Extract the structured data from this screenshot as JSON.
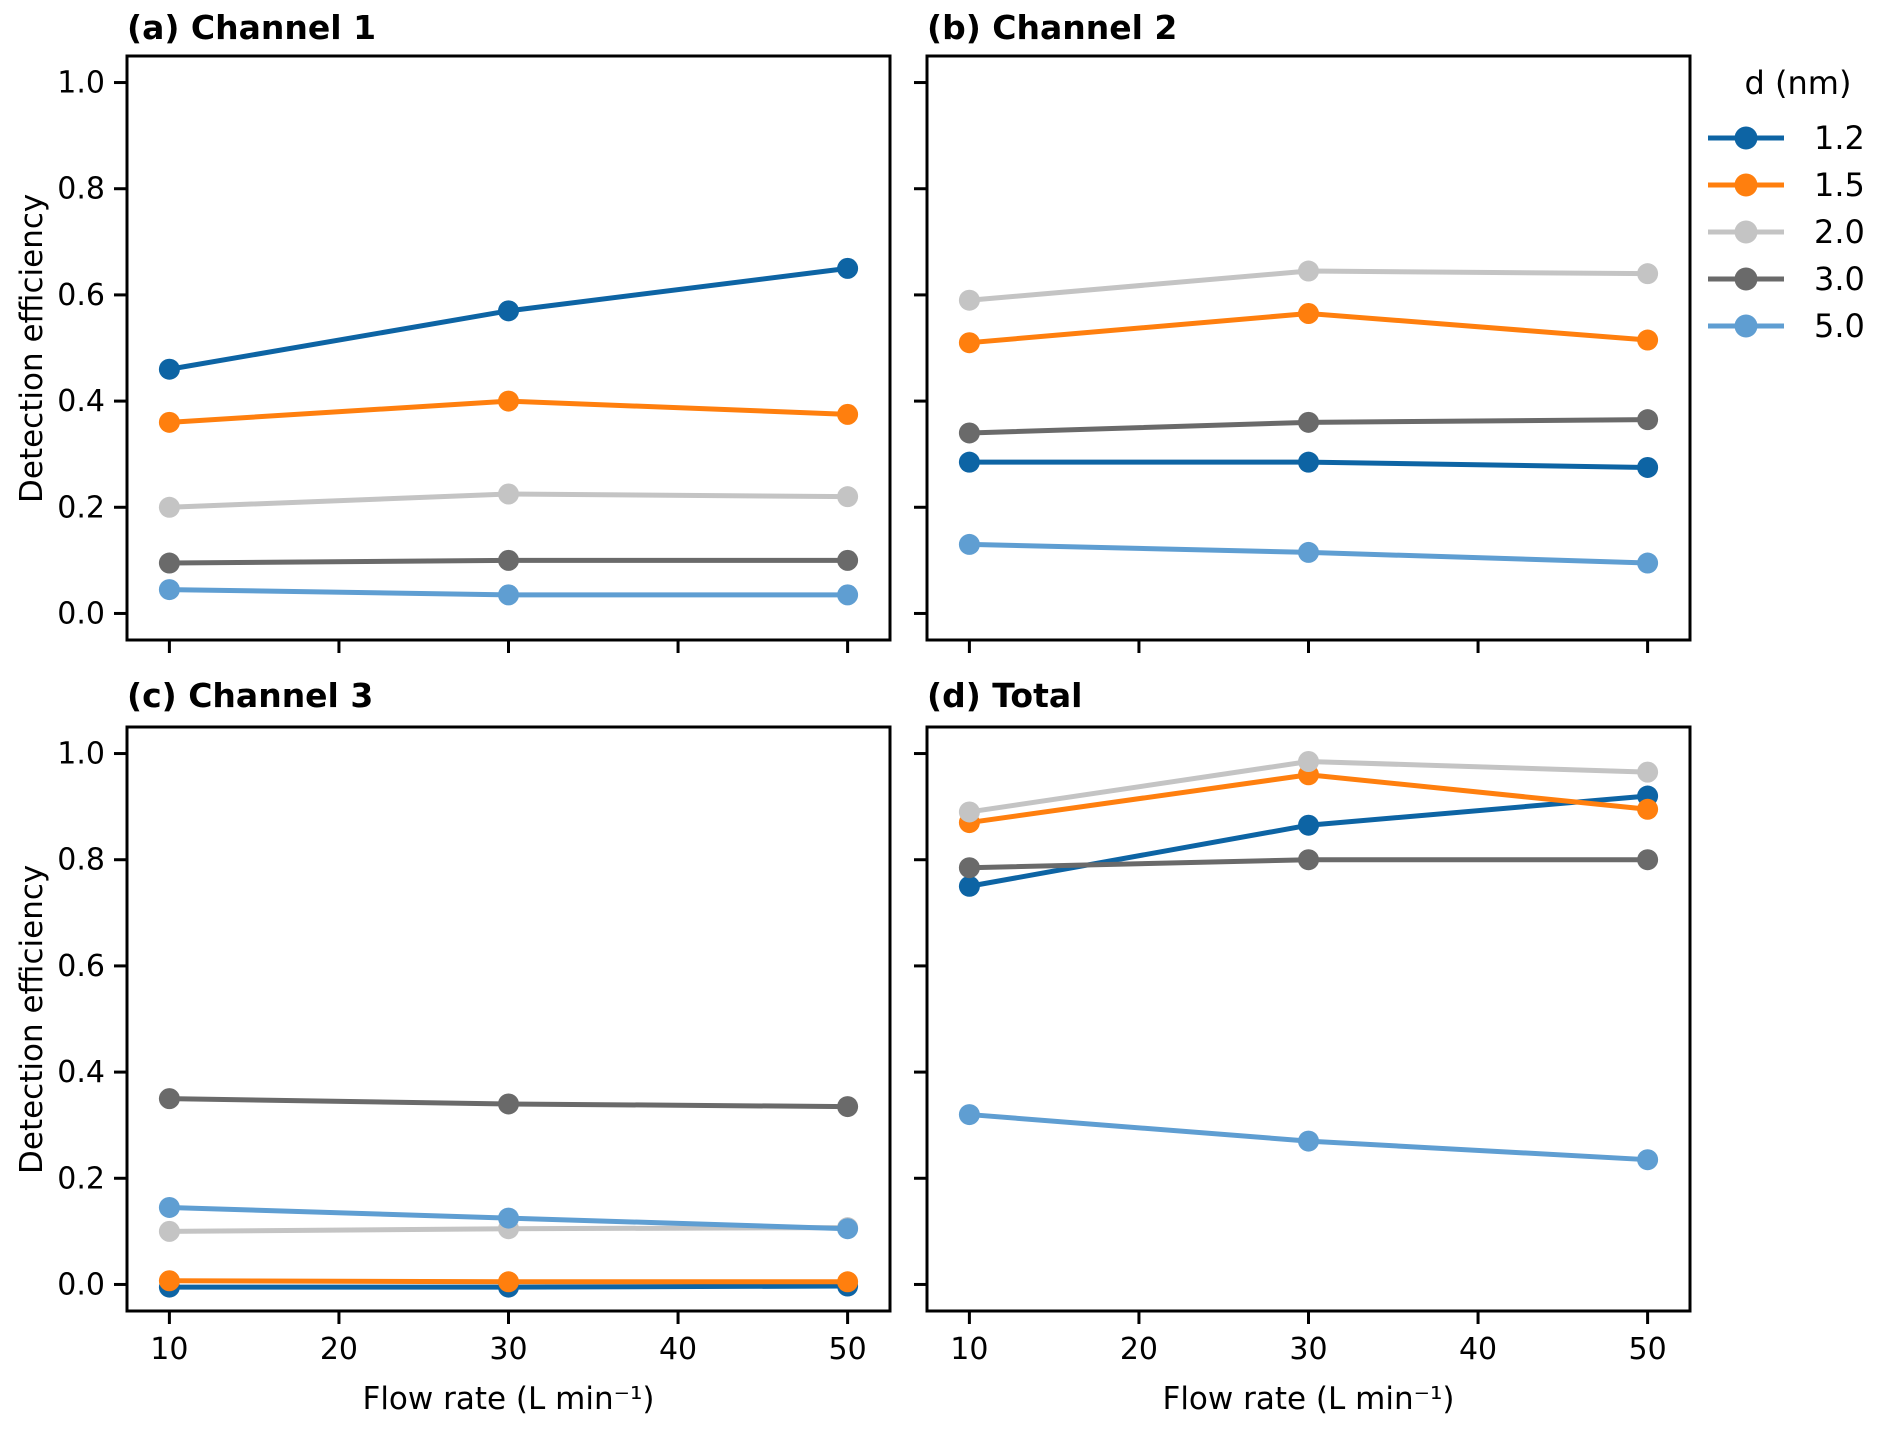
{
  "figure": {
    "background": "#ffffff",
    "spine_color": "#000000",
    "ylabel": "Detection efficiency",
    "xlabel": "Flow rate (L min⁻¹)"
  },
  "legend": {
    "title": "d (nm)",
    "position": "upper right outside",
    "items": [
      {
        "label": "1.2",
        "color": "#0d64a4"
      },
      {
        "label": "1.5",
        "color": "#ff7f0e"
      },
      {
        "label": "2.0",
        "color": "#c4c4c4"
      },
      {
        "label": "3.0",
        "color": "#6a6a6a"
      },
      {
        "label": "5.0",
        "color": "#5f9ed2"
      }
    ]
  },
  "chart_data": [
    {
      "type": "line",
      "panel": "a",
      "title": "(a) Channel 1",
      "x": [
        10,
        30,
        50
      ],
      "xlim": [
        7.5,
        52.5
      ],
      "ylim": [
        -0.05,
        1.05
      ],
      "xticks": [
        10,
        20,
        30,
        40,
        50
      ],
      "yticks": [
        0.0,
        0.2,
        0.4,
        0.6,
        0.8,
        1.0
      ],
      "xticklabels": [
        "10",
        "20",
        "30",
        "40",
        "50"
      ],
      "yticklabels": [
        "0.0",
        "0.2",
        "0.4",
        "0.6",
        "0.8",
        "1.0"
      ],
      "xlabel": "Flow rate (L min⁻¹)",
      "ylabel": "Detection efficiency",
      "grid": false,
      "series": [
        {
          "name": "1.2",
          "color": "#0d64a4",
          "values": [
            0.46,
            0.57,
            0.65
          ]
        },
        {
          "name": "1.5",
          "color": "#ff7f0e",
          "values": [
            0.36,
            0.4,
            0.375
          ]
        },
        {
          "name": "2.0",
          "color": "#c4c4c4",
          "values": [
            0.2,
            0.225,
            0.22
          ]
        },
        {
          "name": "3.0",
          "color": "#6a6a6a",
          "values": [
            0.095,
            0.1,
            0.1
          ]
        },
        {
          "name": "5.0",
          "color": "#5f9ed2",
          "values": [
            0.045,
            0.035,
            0.035
          ]
        }
      ]
    },
    {
      "type": "line",
      "panel": "b",
      "title": "(b) Channel 2",
      "x": [
        10,
        30,
        50
      ],
      "xlim": [
        7.5,
        52.5
      ],
      "ylim": [
        -0.05,
        1.05
      ],
      "xticks": [
        10,
        20,
        30,
        40,
        50
      ],
      "yticks": [
        0.0,
        0.2,
        0.4,
        0.6,
        0.8,
        1.0
      ],
      "xticklabels": [
        "10",
        "20",
        "30",
        "40",
        "50"
      ],
      "yticklabels": [
        "0.0",
        "0.2",
        "0.4",
        "0.6",
        "0.8",
        "1.0"
      ],
      "xlabel": "Flow rate (L min⁻¹)",
      "ylabel": "Detection efficiency",
      "grid": false,
      "series": [
        {
          "name": "1.2",
          "color": "#0d64a4",
          "values": [
            0.285,
            0.285,
            0.275
          ]
        },
        {
          "name": "1.5",
          "color": "#ff7f0e",
          "values": [
            0.51,
            0.565,
            0.515
          ]
        },
        {
          "name": "2.0",
          "color": "#c4c4c4",
          "values": [
            0.59,
            0.645,
            0.64
          ]
        },
        {
          "name": "3.0",
          "color": "#6a6a6a",
          "values": [
            0.34,
            0.36,
            0.365
          ]
        },
        {
          "name": "5.0",
          "color": "#5f9ed2",
          "values": [
            0.13,
            0.115,
            0.095
          ]
        }
      ]
    },
    {
      "type": "line",
      "panel": "c",
      "title": "(c) Channel 3",
      "x": [
        10,
        30,
        50
      ],
      "xlim": [
        7.5,
        52.5
      ],
      "ylim": [
        -0.05,
        1.05
      ],
      "xticks": [
        10,
        20,
        30,
        40,
        50
      ],
      "yticks": [
        0.0,
        0.2,
        0.4,
        0.6,
        0.8,
        1.0
      ],
      "xticklabels": [
        "10",
        "20",
        "30",
        "40",
        "50"
      ],
      "yticklabels": [
        "0.0",
        "0.2",
        "0.4",
        "0.6",
        "0.8",
        "1.0"
      ],
      "xlabel": "Flow rate (L min⁻¹)",
      "ylabel": "Detection efficiency",
      "grid": false,
      "series": [
        {
          "name": "1.2",
          "color": "#0d64a4",
          "values": [
            -0.005,
            -0.005,
            -0.003
          ]
        },
        {
          "name": "1.5",
          "color": "#ff7f0e",
          "values": [
            0.007,
            0.005,
            0.005
          ]
        },
        {
          "name": "2.0",
          "color": "#c4c4c4",
          "values": [
            0.1,
            0.105,
            0.107
          ]
        },
        {
          "name": "3.0",
          "color": "#6a6a6a",
          "values": [
            0.35,
            0.34,
            0.335
          ]
        },
        {
          "name": "5.0",
          "color": "#5f9ed2",
          "values": [
            0.145,
            0.125,
            0.105
          ]
        }
      ]
    },
    {
      "type": "line",
      "panel": "d",
      "title": "(d) Total",
      "x": [
        10,
        30,
        50
      ],
      "xlim": [
        7.5,
        52.5
      ],
      "ylim": [
        -0.05,
        1.05
      ],
      "xticks": [
        10,
        20,
        30,
        40,
        50
      ],
      "yticks": [
        0.0,
        0.2,
        0.4,
        0.6,
        0.8,
        1.0
      ],
      "xticklabels": [
        "10",
        "20",
        "30",
        "40",
        "50"
      ],
      "yticklabels": [
        "0.0",
        "0.2",
        "0.4",
        "0.6",
        "0.8",
        "1.0"
      ],
      "xlabel": "Flow rate (L min⁻¹)",
      "ylabel": "Detection efficiency",
      "grid": false,
      "series": [
        {
          "name": "1.2",
          "color": "#0d64a4",
          "values": [
            0.75,
            0.865,
            0.92
          ]
        },
        {
          "name": "1.5",
          "color": "#ff7f0e",
          "values": [
            0.87,
            0.96,
            0.895
          ]
        },
        {
          "name": "2.0",
          "color": "#c4c4c4",
          "values": [
            0.89,
            0.985,
            0.965
          ]
        },
        {
          "name": "3.0",
          "color": "#6a6a6a",
          "values": [
            0.785,
            0.8,
            0.8
          ]
        },
        {
          "name": "5.0",
          "color": "#5f9ed2",
          "values": [
            0.32,
            0.27,
            0.235
          ]
        }
      ]
    }
  ]
}
